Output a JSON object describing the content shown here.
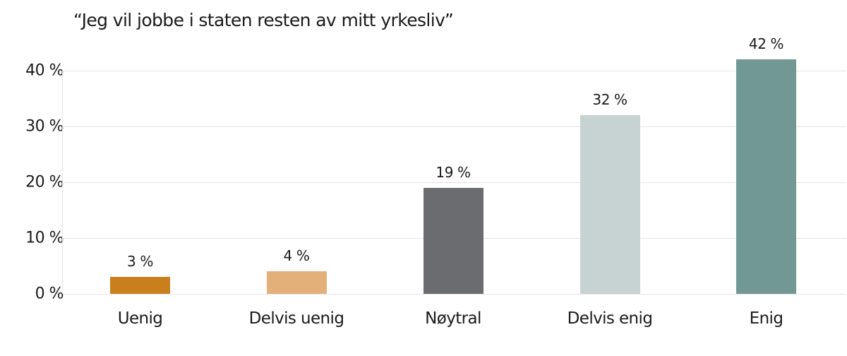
{
  "chart_data": {
    "type": "bar",
    "title": "“Jeg vil jobbe i staten resten av mitt yrkesliv”",
    "xlabel": "",
    "ylabel": "",
    "ylim": [
      0,
      40
    ],
    "yticks": [
      "0 %",
      "10 %",
      "20 %",
      "30 %",
      "40 %"
    ],
    "grid": true,
    "legend": "none",
    "categories": [
      "Uenig",
      "Delvis uenig",
      "Nøytral",
      "Delvis enig",
      "Enig"
    ],
    "values": [
      3,
      4,
      19,
      32,
      42
    ],
    "value_labels": [
      "3 %",
      "4 %",
      "19 %",
      "32 %",
      "42 %"
    ],
    "colors": [
      "#c97f1c",
      "#e4b07a",
      "#6b6c6f",
      "#c7d3d2",
      "#729893"
    ]
  }
}
